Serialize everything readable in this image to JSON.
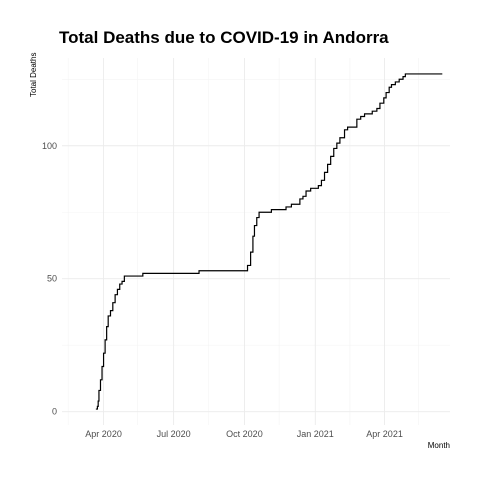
{
  "chart_data": {
    "type": "line",
    "title": "Total Deaths due to COVID-19 in Andorra",
    "xlabel": "Month",
    "ylabel": "Total Deaths",
    "xlim": [
      "2020-02-07",
      "2021-06-25"
    ],
    "ylim": [
      -5,
      133
    ],
    "x_ticks": [
      {
        "date": "2020-04-01",
        "label": "Apr 2020"
      },
      {
        "date": "2020-07-01",
        "label": "Jul 2020"
      },
      {
        "date": "2020-10-01",
        "label": "Oct 2020"
      },
      {
        "date": "2021-01-01",
        "label": "Jan 2021"
      },
      {
        "date": "2021-04-01",
        "label": "Apr 2021"
      }
    ],
    "x_minor_ticks": [
      "2020-02-15",
      "2020-05-15",
      "2020-08-15",
      "2020-11-15",
      "2021-02-15",
      "2021-05-15"
    ],
    "y_ticks": [
      0,
      50,
      100
    ],
    "y_minor_ticks": [
      25,
      75,
      125
    ],
    "grid": true,
    "legend": "none",
    "series": [
      {
        "x": [
          "2020-03-22",
          "2020-03-23",
          "2020-03-24",
          "2020-03-25",
          "2020-03-26",
          "2020-03-28",
          "2020-03-30",
          "2020-04-01",
          "2020-04-03",
          "2020-04-05",
          "2020-04-07",
          "2020-04-10",
          "2020-04-13",
          "2020-04-16",
          "2020-04-19",
          "2020-04-22",
          "2020-04-25",
          "2020-04-28",
          "2020-05-01",
          "2020-05-10",
          "2020-05-20",
          "2020-05-22",
          "2020-06-15",
          "2020-07-05",
          "2020-08-01",
          "2020-08-03",
          "2020-09-01",
          "2020-09-28",
          "2020-10-01",
          "2020-10-05",
          "2020-10-09",
          "2020-10-12",
          "2020-10-14",
          "2020-10-17",
          "2020-10-20",
          "2020-11-01",
          "2020-11-05",
          "2020-11-20",
          "2020-11-24",
          "2020-12-01",
          "2020-12-06",
          "2020-12-12",
          "2020-12-16",
          "2020-12-20",
          "2020-12-26",
          "2021-01-01",
          "2021-01-05",
          "2021-01-09",
          "2021-01-13",
          "2021-01-17",
          "2021-01-21",
          "2021-01-25",
          "2021-01-29",
          "2021-02-02",
          "2021-02-08",
          "2021-02-12",
          "2021-02-18",
          "2021-02-24",
          "2021-03-01",
          "2021-03-06",
          "2021-03-10",
          "2021-03-16",
          "2021-03-22",
          "2021-03-26",
          "2021-03-31",
          "2021-04-03",
          "2021-04-07",
          "2021-04-10",
          "2021-04-15",
          "2021-04-20",
          "2021-04-25",
          "2021-04-28",
          "2021-05-01",
          "2021-06-15"
        ],
        "values": [
          1,
          1,
          2,
          4,
          8,
          12,
          17,
          22,
          27,
          32,
          36,
          38,
          41,
          44,
          46,
          48,
          49,
          51,
          51,
          51,
          51,
          52,
          52,
          52,
          52,
          53,
          53,
          53,
          53,
          55,
          60,
          66,
          70,
          73,
          75,
          75,
          76,
          76,
          77,
          78,
          78,
          80,
          81,
          83,
          84,
          84,
          85,
          87,
          90,
          93,
          96,
          99,
          101,
          103,
          106,
          107,
          107,
          110,
          111,
          112,
          112,
          113,
          114,
          116,
          118,
          120,
          122,
          123,
          124,
          125,
          126,
          127,
          127,
          127
        ]
      }
    ]
  }
}
